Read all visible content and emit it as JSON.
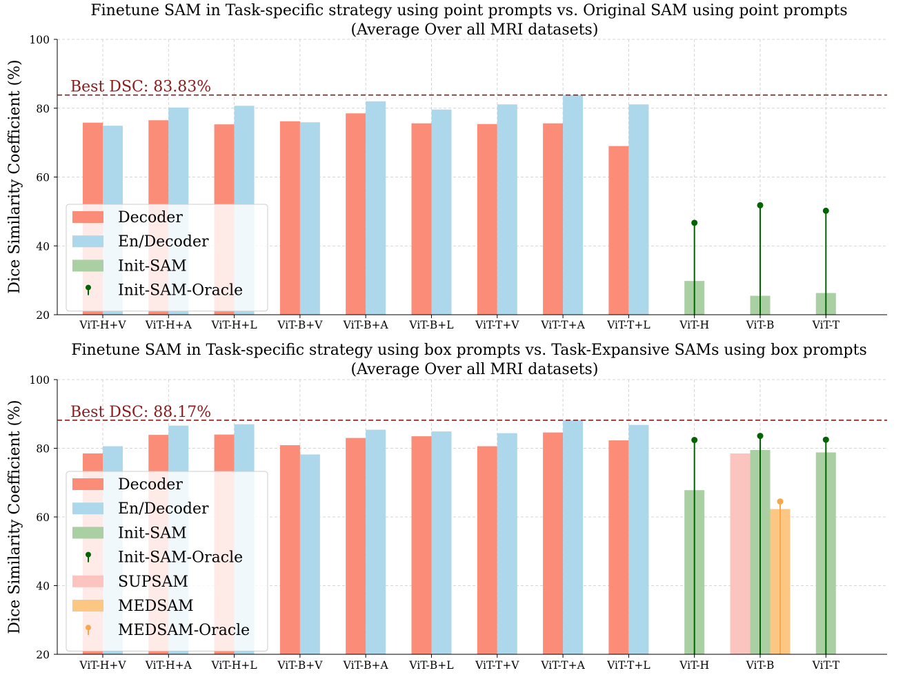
{
  "colors": {
    "decoder": "#fa8c78",
    "endecoder": "#add8ec",
    "initsam": "#a9cfa3",
    "oracle": "#006400",
    "supsam": "#fbc4bf",
    "medsam": "#fcc783",
    "medsam_oracle": "#f7a84a",
    "best_line": "#8b1a1a"
  },
  "chart_data": [
    {
      "type": "bar",
      "title": "Finetune SAM in Task-specific strategy using point prompts vs. Original SAM using point prompts",
      "subtitle": "(Average Over all MRI datasets)",
      "ylabel": "Dice Similarity Coefficient (%)",
      "xlabel": "",
      "ylim": [
        20,
        100
      ],
      "yticks": [
        20,
        40,
        60,
        80,
        100
      ],
      "grid": true,
      "legend_position": "lower-left",
      "best_line": {
        "value": 83.83,
        "label": "Best DSC: 83.83%"
      },
      "categories": [
        "ViT-H+V",
        "ViT-H+A",
        "ViT-H+L",
        "ViT-B+V",
        "ViT-B+A",
        "ViT-B+L",
        "ViT-T+V",
        "ViT-T+A",
        "ViT-T+L",
        "ViT-H",
        "ViT-B",
        "ViT-T"
      ],
      "series": [
        {
          "name": "Decoder",
          "color_key": "decoder",
          "kind": "bar",
          "slot": 0,
          "values": [
            75.8,
            76.5,
            75.3,
            76.2,
            78.5,
            75.6,
            75.4,
            75.6,
            69.0,
            null,
            null,
            null
          ]
        },
        {
          "name": "En/Decoder",
          "color_key": "endecoder",
          "kind": "bar",
          "slot": 1,
          "values": [
            74.9,
            80.2,
            80.7,
            75.9,
            82.0,
            79.6,
            81.1,
            83.8,
            81.1,
            null,
            null,
            null
          ]
        },
        {
          "name": "Init-SAM",
          "color_key": "initsam",
          "kind": "bar",
          "slot": 0.5,
          "values": [
            null,
            null,
            null,
            null,
            null,
            null,
            null,
            null,
            null,
            29.8,
            25.5,
            26.3
          ]
        },
        {
          "name": "Init-SAM-Oracle",
          "color_key": "oracle",
          "kind": "stem",
          "slot": 0.5,
          "values": [
            null,
            null,
            null,
            null,
            null,
            null,
            null,
            null,
            null,
            46.7,
            51.8,
            50.2
          ]
        }
      ],
      "legend": [
        "Decoder",
        "En/Decoder",
        "Init-SAM",
        "Init-SAM-Oracle"
      ]
    },
    {
      "type": "bar",
      "title": "Finetune SAM in Task-specific strategy using box prompts vs. Task-Expansive SAMs using box prompts",
      "subtitle": "(Average Over all MRI datasets)",
      "ylabel": "Dice Similarity Coefficient (%)",
      "xlabel": "",
      "ylim": [
        20,
        100
      ],
      "yticks": [
        20,
        40,
        60,
        80,
        100
      ],
      "grid": true,
      "legend_position": "lower-left",
      "best_line": {
        "value": 88.17,
        "label": "Best DSC: 88.17%"
      },
      "categories": [
        "ViT-H+V",
        "ViT-H+A",
        "ViT-H+L",
        "ViT-B+V",
        "ViT-B+A",
        "ViT-B+L",
        "ViT-T+V",
        "ViT-T+A",
        "ViT-T+L",
        "ViT-H",
        "ViT-B",
        "ViT-T"
      ],
      "series": [
        {
          "name": "Decoder",
          "color_key": "decoder",
          "kind": "bar",
          "slot": 0,
          "values": [
            78.5,
            83.9,
            84.0,
            80.9,
            83.0,
            83.5,
            80.6,
            84.6,
            82.3,
            null,
            null,
            null
          ]
        },
        {
          "name": "En/Decoder",
          "color_key": "endecoder",
          "kind": "bar",
          "slot": 1,
          "values": [
            80.6,
            86.6,
            87.0,
            78.2,
            85.4,
            84.9,
            84.4,
            88.2,
            86.8,
            null,
            null,
            null
          ]
        },
        {
          "name": "Init-SAM",
          "color_key": "initsam",
          "kind": "bar",
          "slot": 0.5,
          "values": [
            null,
            null,
            null,
            null,
            null,
            null,
            null,
            null,
            null,
            67.8,
            79.5,
            78.8
          ]
        },
        {
          "name": "Init-SAM-Oracle",
          "color_key": "oracle",
          "kind": "stem",
          "slot": 0.5,
          "values": [
            null,
            null,
            null,
            null,
            null,
            null,
            null,
            null,
            null,
            82.4,
            83.6,
            82.5
          ]
        },
        {
          "name": "SUPSAM",
          "color_key": "supsam",
          "kind": "bar",
          "slot": -0.5,
          "values": [
            null,
            null,
            null,
            null,
            null,
            null,
            null,
            null,
            null,
            null,
            78.5,
            null
          ]
        },
        {
          "name": "MEDSAM",
          "color_key": "medsam",
          "kind": "bar",
          "slot": 1.5,
          "values": [
            null,
            null,
            null,
            null,
            null,
            null,
            null,
            null,
            null,
            null,
            62.3,
            null
          ]
        },
        {
          "name": "MEDSAM-Oracle",
          "color_key": "medsam_oracle",
          "kind": "stem",
          "slot": 1.5,
          "values": [
            null,
            null,
            null,
            null,
            null,
            null,
            null,
            null,
            null,
            null,
            64.5,
            null
          ]
        }
      ],
      "legend": [
        "Decoder",
        "En/Decoder",
        "Init-SAM",
        "Init-SAM-Oracle",
        "SUPSAM",
        "MEDSAM",
        "MEDSAM-Oracle"
      ]
    }
  ]
}
